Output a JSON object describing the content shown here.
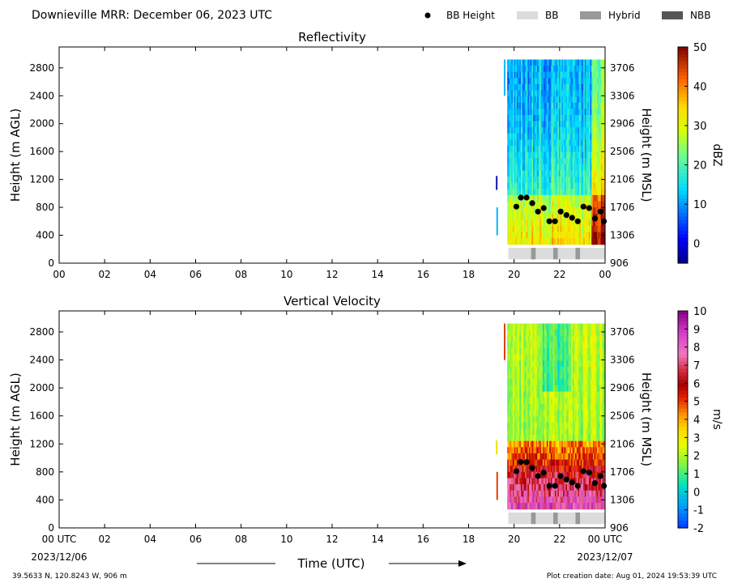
{
  "page": {
    "title": "Downieville MRR:  December 06, 2023 UTC",
    "footer_left": "39.5633 N, 120.8243 W, 906 m",
    "footer_right": "Plot creation date: Aug 01, 2024 19:53:39 UTC",
    "xlabel": "Time (UTC)"
  },
  "legend": [
    {
      "label": "BB Height",
      "kind": "dot",
      "color": "#000000"
    },
    {
      "label": "BB",
      "kind": "box",
      "color": "#dcdcdc"
    },
    {
      "label": "Hybrid",
      "kind": "box",
      "color": "#999999"
    },
    {
      "label": "NBB",
      "kind": "box",
      "color": "#555555"
    }
  ],
  "colors": {
    "bb_strip": "#dcdcdc",
    "hybrid": "#999999"
  },
  "chart_data": [
    {
      "type": "heatmap",
      "title": "Reflectivity",
      "ylabel": "Height (m AGL)",
      "ylabel_right": "Height (m MSL)",
      "colorbar_label": "dBZ",
      "colorbar_ticks": [
        "50",
        "40",
        "30",
        "20",
        "10",
        "0"
      ],
      "colorbar_range": [
        -5,
        50
      ],
      "colorscale": "jet",
      "xlim_hours": [
        0,
        24
      ],
      "x_ticks": [
        "00",
        "02",
        "04",
        "06",
        "08",
        "10",
        "12",
        "14",
        "16",
        "18",
        "20",
        "22",
        "00"
      ],
      "ylim": [
        0,
        3100
      ],
      "y_ticks": [
        "0",
        "400",
        "800",
        "1200",
        "1600",
        "2000",
        "2400",
        "2800"
      ],
      "y_ticks_right": [
        "906",
        "1306",
        "1706",
        "2106",
        "2506",
        "2906",
        "3306",
        "3706"
      ],
      "data_start_hour": 19.7,
      "bb_height": {
        "hours": [
          20.1,
          20.3,
          20.55,
          20.8,
          21.05,
          21.3,
          21.55,
          21.8,
          22.05,
          22.3,
          22.55,
          22.8,
          23.05,
          23.3,
          23.55,
          23.8,
          23.95
        ],
        "heights_m": [
          810,
          940,
          940,
          860,
          740,
          790,
          600,
          600,
          740,
          690,
          650,
          600,
          810,
          790,
          640,
          740,
          600
        ]
      },
      "bb_type_strip": {
        "range_hours": [
          19.75,
          24
        ],
        "hybrid_hours": [
          [
            20.75,
            20.95
          ],
          [
            21.72,
            21.92
          ],
          [
            22.7,
            22.9
          ]
        ]
      }
    },
    {
      "type": "heatmap",
      "title": "Vertical Velocity",
      "ylabel": "Height (m AGL)",
      "ylabel_right": "Height (m MSL)",
      "colorbar_label": "m/s",
      "colorbar_ticks": [
        "10",
        "9",
        "8",
        "7",
        "6",
        "5",
        "4",
        "3",
        "2",
        "1",
        "0",
        "-1",
        "-2"
      ],
      "colorbar_range": [
        -2,
        10
      ],
      "colorscale": "velocity",
      "xlim_hours": [
        0,
        24
      ],
      "x_ticks": [
        "00 UTC",
        "02",
        "04",
        "06",
        "08",
        "10",
        "12",
        "14",
        "16",
        "18",
        "20",
        "22",
        "00 UTC"
      ],
      "x_dates": [
        "2023/12/06",
        "2023/12/07"
      ],
      "ylim": [
        0,
        3100
      ],
      "y_ticks": [
        "0",
        "400",
        "800",
        "1200",
        "1600",
        "2000",
        "2400",
        "2800"
      ],
      "y_ticks_right": [
        "906",
        "1306",
        "1706",
        "2106",
        "2506",
        "2906",
        "3306",
        "3706"
      ],
      "data_start_hour": 19.7,
      "bb_height": {
        "hours": [
          20.1,
          20.3,
          20.55,
          20.8,
          21.05,
          21.3,
          21.55,
          21.8,
          22.05,
          22.3,
          22.55,
          22.8,
          23.05,
          23.3,
          23.55,
          23.8,
          23.95
        ],
        "heights_m": [
          810,
          940,
          940,
          860,
          740,
          790,
          600,
          600,
          740,
          690,
          650,
          600,
          810,
          790,
          640,
          740,
          600
        ]
      },
      "bb_type_strip": {
        "range_hours": [
          19.75,
          24
        ],
        "hybrid_hours": [
          [
            20.75,
            20.95
          ],
          [
            21.72,
            21.92
          ],
          [
            22.7,
            22.9
          ]
        ]
      }
    }
  ]
}
